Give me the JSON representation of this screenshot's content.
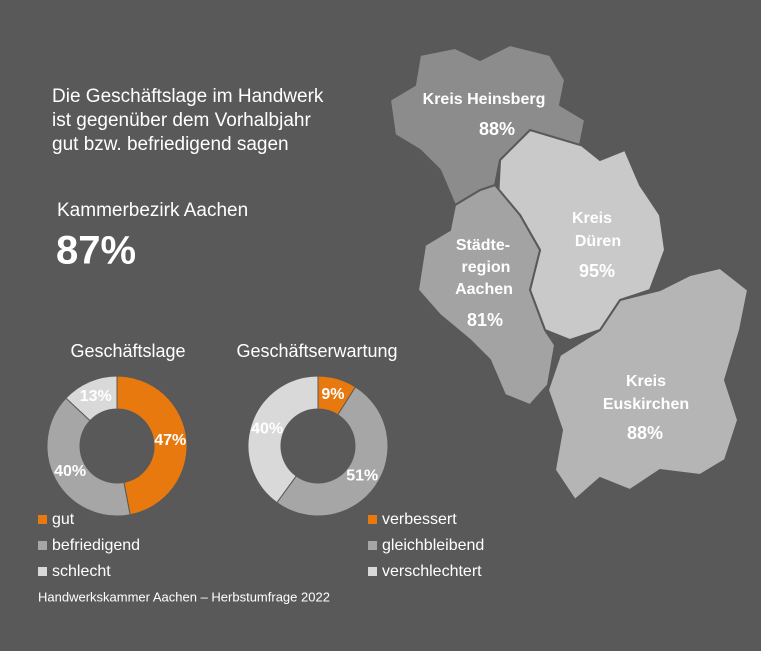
{
  "headline": [
    "Die Geschäftslage im Handwerk",
    "ist gegenüber dem Vorhalbjahr",
    "gut bzw. befriedigend sagen"
  ],
  "kammerbezirk": {
    "label": "Kammerbezirk Aachen",
    "value": "87%"
  },
  "map": {
    "regions": [
      {
        "name_lines": [
          "Kreis Heinsberg"
        ],
        "value": "88%"
      },
      {
        "name_lines": [
          "Kreis",
          "Düren"
        ],
        "value": "95%"
      },
      {
        "name_lines": [
          "Städte-",
          "region",
          "Aachen"
        ],
        "value": "81%"
      },
      {
        "name_lines": [
          "Kreis",
          "Euskirchen"
        ],
        "value": "88%"
      }
    ]
  },
  "chart_data": [
    {
      "type": "pie",
      "donut": true,
      "title": "Geschäftslage",
      "categories": [
        "gut",
        "befriedigend",
        "schlecht"
      ],
      "values": [
        47,
        40,
        13
      ],
      "value_labels": [
        "47%",
        "40%",
        "13%"
      ],
      "colors": [
        "#e8790f",
        "#a6a6a6",
        "#d9d9d9"
      ]
    },
    {
      "type": "pie",
      "donut": true,
      "title": "Geschäftserwartung",
      "categories": [
        "verbessert",
        "gleichbleibend",
        "verschlechtert"
      ],
      "values": [
        9,
        51,
        40
      ],
      "value_labels": [
        "9%",
        "51%",
        "40%"
      ],
      "colors": [
        "#e8790f",
        "#a6a6a6",
        "#d9d9d9"
      ]
    }
  ],
  "source": "Handwerkskammer Aachen – Herbstumfrage 2022"
}
